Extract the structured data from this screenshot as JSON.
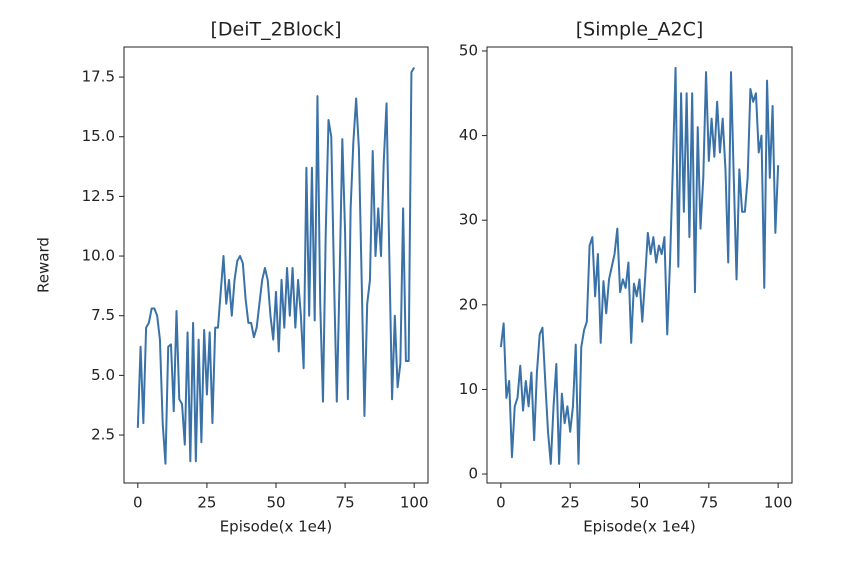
{
  "chart_data": [
    {
      "type": "line",
      "title": "[DeiT_2Block]",
      "xlabel": "Episode(x 1e4)",
      "ylabel": "Reward",
      "color": "#3a72a8",
      "x": [
        0,
        1,
        2,
        3,
        4,
        5,
        6,
        7,
        8,
        9,
        10,
        11,
        12,
        13,
        14,
        15,
        16,
        17,
        18,
        19,
        20,
        21,
        22,
        23,
        24,
        25,
        26,
        27,
        28,
        29,
        30,
        31,
        32,
        33,
        34,
        35,
        36,
        37,
        38,
        39,
        40,
        41,
        42,
        43,
        44,
        45,
        46,
        47,
        48,
        49,
        50,
        51,
        52,
        53,
        54,
        55,
        56,
        57,
        58,
        59,
        60,
        61,
        62,
        63,
        64,
        65,
        66,
        67,
        68,
        69,
        70,
        71,
        72,
        73,
        74,
        75,
        76,
        77,
        78,
        79,
        80,
        81,
        82,
        83,
        84,
        85,
        86,
        87,
        88,
        89,
        90,
        91,
        92,
        93,
        94,
        95,
        96,
        97,
        98,
        99,
        100
      ],
      "values": [
        2.8,
        6.2,
        3.0,
        7.0,
        7.2,
        7.8,
        7.8,
        7.5,
        6.5,
        3.0,
        1.3,
        6.2,
        6.3,
        3.5,
        7.7,
        4.0,
        3.8,
        2.1,
        6.8,
        1.4,
        7.2,
        1.4,
        6.5,
        2.2,
        6.9,
        4.2,
        6.8,
        3.0,
        7.0,
        7.0,
        8.5,
        10.0,
        8.0,
        9.0,
        7.5,
        9.0,
        9.8,
        10.0,
        9.7,
        8.2,
        7.2,
        7.2,
        6.6,
        7.0,
        8.0,
        9.0,
        9.5,
        9.0,
        7.5,
        6.5,
        8.5,
        6.0,
        9.0,
        7.0,
        9.5,
        7.5,
        9.5,
        7.0,
        9.0,
        7.5,
        5.3,
        13.7,
        7.5,
        13.7,
        7.3,
        16.7,
        8.0,
        3.9,
        11.0,
        15.7,
        15.0,
        9.0,
        3.9,
        9.0,
        14.9,
        11.0,
        4.0,
        12.0,
        14.8,
        16.6,
        14.5,
        9.0,
        3.3,
        8.0,
        9.0,
        14.4,
        10.0,
        12.0,
        10.0,
        14.0,
        16.4,
        10.0,
        4.0,
        7.5,
        4.5,
        5.5,
        12.0,
        5.6,
        5.6,
        17.7,
        17.9
      ],
      "xlim": [
        -5,
        105
      ],
      "ylim": [
        0.49,
        18.76
      ],
      "xticks": [
        0,
        25,
        50,
        75,
        100
      ],
      "yticks": [
        2.5,
        {
          "value": 5,
          "label": "5.0"
        },
        7.5,
        {
          "value": 10,
          "label": "10.0"
        },
        12.5,
        {
          "value": 15,
          "label": "15.0"
        },
        17.5
      ]
    },
    {
      "type": "line",
      "title": "[Simple_A2C]",
      "xlabel": "Episode(x 1e4)",
      "color": "#3a72a8",
      "x": [
        0,
        1,
        2,
        3,
        4,
        5,
        6,
        7,
        8,
        9,
        10,
        11,
        12,
        13,
        14,
        15,
        16,
        17,
        18,
        19,
        20,
        21,
        22,
        23,
        24,
        25,
        26,
        27,
        28,
        29,
        30,
        31,
        32,
        33,
        34,
        35,
        36,
        37,
        38,
        39,
        40,
        41,
        42,
        43,
        44,
        45,
        46,
        47,
        48,
        49,
        50,
        51,
        52,
        53,
        54,
        55,
        56,
        57,
        58,
        59,
        60,
        61,
        62,
        63,
        64,
        65,
        66,
        67,
        68,
        69,
        70,
        71,
        72,
        73,
        74,
        75,
        76,
        77,
        78,
        79,
        80,
        81,
        82,
        83,
        84,
        85,
        86,
        87,
        88,
        89,
        90,
        91,
        92,
        93,
        94,
        95,
        96,
        97,
        98,
        99,
        100
      ],
      "values": [
        15,
        17.8,
        9,
        11,
        2,
        8,
        9,
        12.8,
        7.5,
        11,
        8,
        12,
        4,
        12,
        16.5,
        17.3,
        11,
        5,
        1.2,
        8,
        13,
        1.2,
        9.5,
        6,
        8,
        5,
        8,
        15.3,
        1.2,
        15,
        17,
        18,
        27,
        28,
        21,
        26,
        15.5,
        22.8,
        19,
        23,
        24.5,
        26,
        29,
        21.5,
        23,
        22,
        25,
        15.5,
        22.5,
        21,
        23,
        18,
        23,
        28.5,
        26,
        28,
        25,
        27,
        26,
        28,
        16.5,
        25,
        36,
        48,
        24.5,
        45,
        31,
        45,
        28,
        45,
        21.5,
        41,
        29,
        35,
        47.5,
        37,
        42,
        37.5,
        44,
        38,
        42,
        36,
        25,
        47.5,
        35,
        23,
        36,
        31,
        31,
        35,
        45.5,
        44,
        45,
        38,
        40,
        22,
        46.5,
        35,
        43.5,
        28.5,
        36.5
      ],
      "xlim": [
        -5,
        105
      ],
      "ylim": [
        -1.06,
        50.47
      ],
      "xticks": [
        0,
        25,
        50,
        75,
        100
      ],
      "yticks": [
        0,
        10,
        20,
        30,
        40,
        50
      ]
    }
  ]
}
